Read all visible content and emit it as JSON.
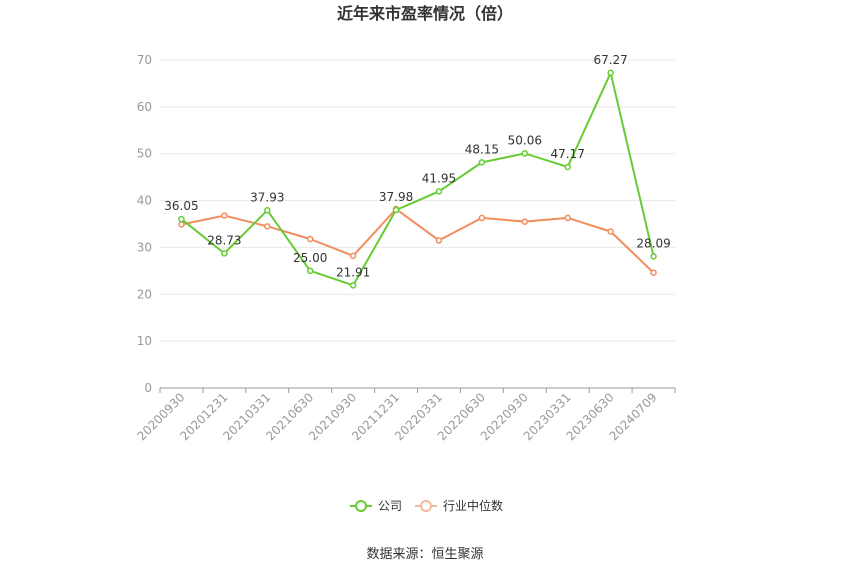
{
  "chart_data": {
    "type": "line",
    "title": "近年来市盈率情况（倍）",
    "categories": [
      "20200930",
      "20201231",
      "20210331",
      "20210630",
      "20210930",
      "20211231",
      "20220331",
      "20220630",
      "20220930",
      "20230331",
      "20230630",
      "20240709"
    ],
    "series": [
      {
        "name": "公司",
        "color": "#66cc33",
        "values": [
          36.05,
          28.73,
          37.93,
          25.0,
          21.91,
          37.98,
          41.95,
          48.15,
          50.06,
          47.17,
          67.27,
          28.09
        ]
      },
      {
        "name": "行业中位数",
        "color": "#f08d5c",
        "values": [
          34.9,
          36.8,
          34.5,
          31.8,
          28.2,
          38.2,
          31.5,
          36.3,
          35.5,
          36.3,
          33.4,
          24.6
        ]
      }
    ],
    "data_labels": [
      "36.05",
      "28.73",
      "37.93",
      "25.00",
      "21.91",
      "37.98",
      "41.95",
      "48.15",
      "50.06",
      "47.17",
      "67.27",
      "28.09"
    ],
    "ylim": [
      0,
      70
    ],
    "yticks": [
      "0",
      "10",
      "20",
      "30",
      "40",
      "50",
      "60",
      "70"
    ],
    "grid": true,
    "legend_position": "bottom",
    "source": "数据来源：恒生聚源"
  }
}
